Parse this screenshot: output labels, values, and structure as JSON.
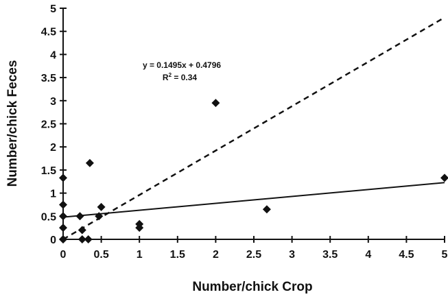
{
  "chart_data": {
    "type": "scatter",
    "xlabel": "Number/chick Crop",
    "ylabel": "Number/chick Feces",
    "xlim": [
      0,
      5
    ],
    "ylim": [
      0,
      5
    ],
    "x_ticks": [
      "0",
      "0.5",
      "1",
      "1.5",
      "2",
      "2.5",
      "3",
      "3.5",
      "4",
      "4.5",
      "5"
    ],
    "y_ticks": [
      "0",
      "0.5",
      "1",
      "1.5",
      "2",
      "2.5",
      "3",
      "3.5",
      "4",
      "4.5",
      "5"
    ],
    "grid": false,
    "points": {
      "x": [
        0,
        0,
        0,
        0,
        0,
        0,
        0.22,
        0.25,
        0.25,
        0.33,
        0.35,
        0.47,
        0.5,
        1.0,
        1.0,
        2.0,
        2.67,
        5.0
      ],
      "y": [
        0,
        0.25,
        0.5,
        0.75,
        1.33,
        0,
        0.5,
        0,
        0.2,
        0,
        1.65,
        0.5,
        0.7,
        0.25,
        0.33,
        2.95,
        0.65,
        1.33
      ]
    },
    "trendline": {
      "slope": 0.1495,
      "intercept": 0.4796,
      "style": "solid"
    },
    "reference_line": {
      "slope": 0.96,
      "intercept": 0,
      "style": "dashed"
    },
    "annotations": {
      "equation": "y = 0.1495x + 0.4796",
      "r2_prefix": "R",
      "r2_exponent": "2",
      "r2_value": " = 0.34"
    },
    "colors": {
      "marker": "#111111",
      "line": "#111111",
      "axis": "#111111"
    }
  }
}
